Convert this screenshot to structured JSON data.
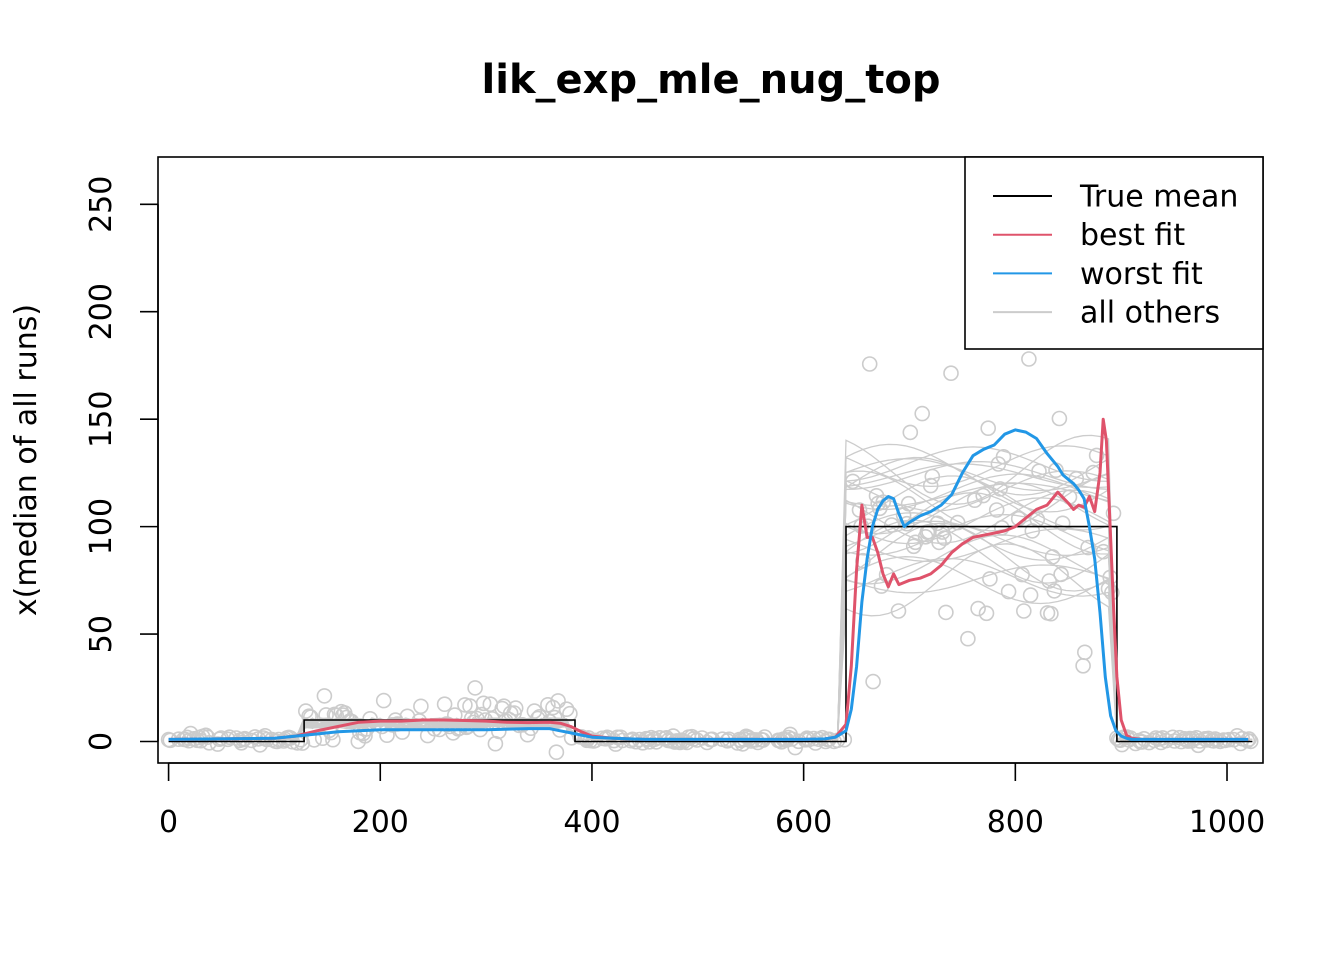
{
  "chart_data": {
    "type": "line",
    "title": "lik_exp_mle_nug_top",
    "xlabel": "",
    "ylabel": "x(median of all runs)",
    "xlim": [
      -10,
      1034
    ],
    "ylim": [
      -10,
      272
    ],
    "xticks": [
      0,
      200,
      400,
      600,
      800,
      1000
    ],
    "yticks": [
      0,
      50,
      100,
      150,
      200,
      250
    ],
    "legend": {
      "position": "top-right",
      "entries": [
        {
          "label": "True mean",
          "color": "#000000"
        },
        {
          "label": "best fit",
          "color": "#DF536B"
        },
        {
          "label": "worst fit",
          "color": "#2297E6"
        },
        {
          "label": "all others",
          "color": "#CCCCCC"
        }
      ]
    },
    "colors": {
      "true_mean": "#000000",
      "best": "#DF536B",
      "worst": "#2297E6",
      "others": "#CCCCCC"
    },
    "series": [
      {
        "name": "True mean",
        "x": [
          0,
          128,
          128,
          384,
          384,
          640,
          640,
          896,
          896,
          1024
        ],
        "y": [
          0,
          0,
          10,
          10,
          0,
          0,
          100,
          100,
          0,
          0
        ]
      },
      {
        "name": "best fit",
        "x": [
          0,
          100,
          120,
          140,
          160,
          180,
          200,
          220,
          240,
          260,
          280,
          300,
          320,
          340,
          360,
          370,
          380,
          390,
          400,
          420,
          450,
          500,
          550,
          600,
          620,
          630,
          640,
          645,
          650,
          655,
          660,
          665,
          670,
          675,
          680,
          685,
          690,
          700,
          710,
          720,
          730,
          740,
          750,
          760,
          770,
          780,
          790,
          800,
          810,
          820,
          830,
          840,
          850,
          855,
          860,
          865,
          870,
          875,
          880,
          883,
          886,
          890,
          893,
          896,
          900,
          905,
          910,
          920,
          950,
          1000,
          1020
        ],
        "y": [
          1,
          1.5,
          2.5,
          5,
          7,
          9,
          9.5,
          9.5,
          10,
          10,
          9.8,
          9.5,
          9,
          8.8,
          9,
          8.5,
          7,
          4.5,
          2.5,
          1.5,
          1,
          1,
          1,
          1,
          1.2,
          2,
          8,
          35,
          80,
          110,
          95,
          95,
          88,
          78,
          72,
          78,
          73,
          75,
          76,
          78,
          82,
          88,
          92,
          95,
          96,
          97,
          98,
          100,
          104,
          108,
          110,
          116,
          111,
          108,
          110,
          109,
          114,
          107,
          125,
          150,
          140,
          95,
          60,
          30,
          10,
          3,
          1.5,
          1,
          1,
          1,
          1
        ]
      },
      {
        "name": "worst fit",
        "x": [
          0,
          100,
          120,
          140,
          160,
          180,
          200,
          250,
          300,
          340,
          360,
          370,
          380,
          390,
          400,
          420,
          450,
          500,
          600,
          620,
          630,
          640,
          645,
          650,
          655,
          660,
          665,
          670,
          675,
          680,
          685,
          690,
          695,
          700,
          710,
          720,
          730,
          740,
          750,
          760,
          770,
          780,
          790,
          800,
          810,
          820,
          830,
          840,
          845,
          850,
          855,
          860,
          865,
          870,
          875,
          880,
          885,
          890,
          895,
          900,
          905,
          910,
          920,
          950,
          1000,
          1020
        ],
        "y": [
          1,
          1.5,
          2.5,
          3.5,
          4.5,
          5,
          5.5,
          5.5,
          5.5,
          6,
          6,
          5,
          4,
          3,
          2,
          1.5,
          1,
          1,
          1,
          1.2,
          2,
          5,
          15,
          35,
          65,
          85,
          100,
          108,
          112,
          114,
          113,
          106,
          100,
          102,
          105,
          107,
          110,
          115,
          125,
          133,
          136,
          138,
          143,
          145,
          144,
          141,
          134,
          128,
          124,
          122,
          120,
          117,
          113,
          100,
          85,
          60,
          30,
          12,
          5,
          2.5,
          1.5,
          1,
          1,
          1,
          1,
          1
        ]
      }
    ]
  }
}
